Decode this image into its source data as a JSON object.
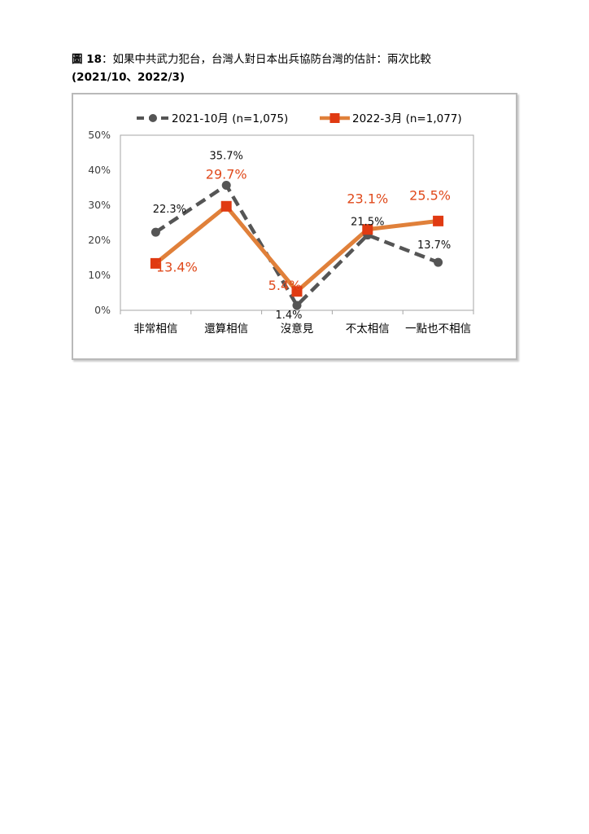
{
  "caption": {
    "label": "圖 18",
    "title": "：如果中共武力犯台，台灣人對日本出兵協防台灣的估計：兩次比較",
    "subtitle": "(2021/10、2022/3)"
  },
  "chart_data": {
    "type": "line",
    "title": "",
    "xlabel": "",
    "ylabel": "",
    "categories": [
      "非常相信",
      "還算相信",
      "沒意見",
      "不太相信",
      "一點也不相信"
    ],
    "ylim": [
      0,
      50
    ],
    "yticks": [
      "0%",
      "10%",
      "20%",
      "30%",
      "40%",
      "50%"
    ],
    "legend_position": "top",
    "grid": false,
    "series": [
      {
        "name": "2021-10月  (n=1,075)",
        "values": [
          22.3,
          35.7,
          1.4,
          21.5,
          13.7
        ],
        "labels": [
          "22.3%",
          "35.7%",
          "1.4%",
          "21.5%",
          "13.7%"
        ],
        "color": "#555555",
        "style": "dashed",
        "marker": "circle"
      },
      {
        "name": "2022-3月  (n=1,077)",
        "values": [
          13.4,
          29.7,
          5.4,
          23.1,
          25.5
        ],
        "labels": [
          "13.4%",
          "29.7%",
          "5.4%",
          "23.1%",
          "25.5%"
        ],
        "color": "#e0803a",
        "marker_color": "#e03a12",
        "label_color": "#e04a1c",
        "style": "solid",
        "marker": "square"
      }
    ]
  }
}
